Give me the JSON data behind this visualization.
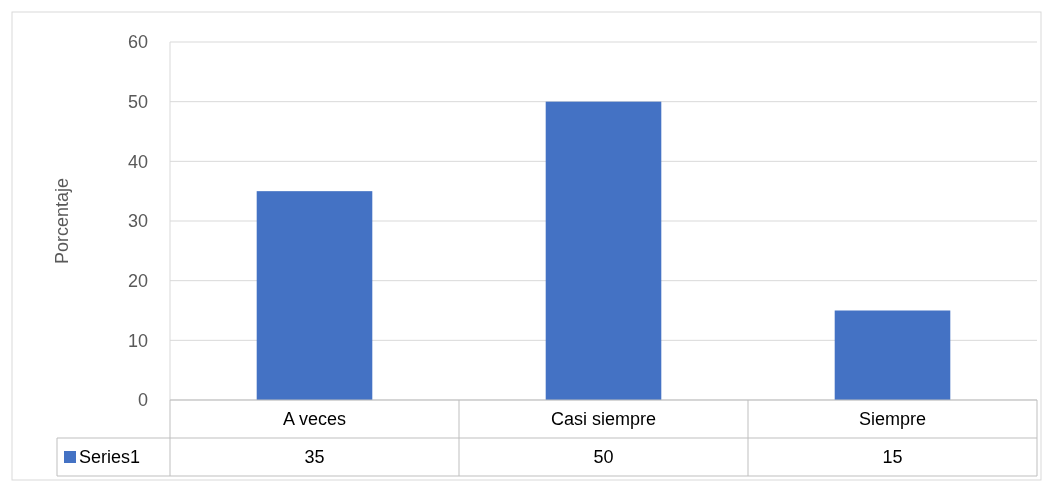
{
  "chart_data": {
    "type": "bar",
    "ylabel": "Porcentaje",
    "categories": [
      "A veces",
      "Casi siempre",
      "Siempre"
    ],
    "series": [
      {
        "name": "Series1",
        "color": "#4472c4",
        "values": [
          35,
          50,
          15
        ]
      }
    ],
    "ylim": [
      0,
      60
    ],
    "yticks": [
      0,
      10,
      20,
      30,
      40,
      50,
      60
    ],
    "grid": "y",
    "legend": "bottom",
    "data_labels": true
  }
}
